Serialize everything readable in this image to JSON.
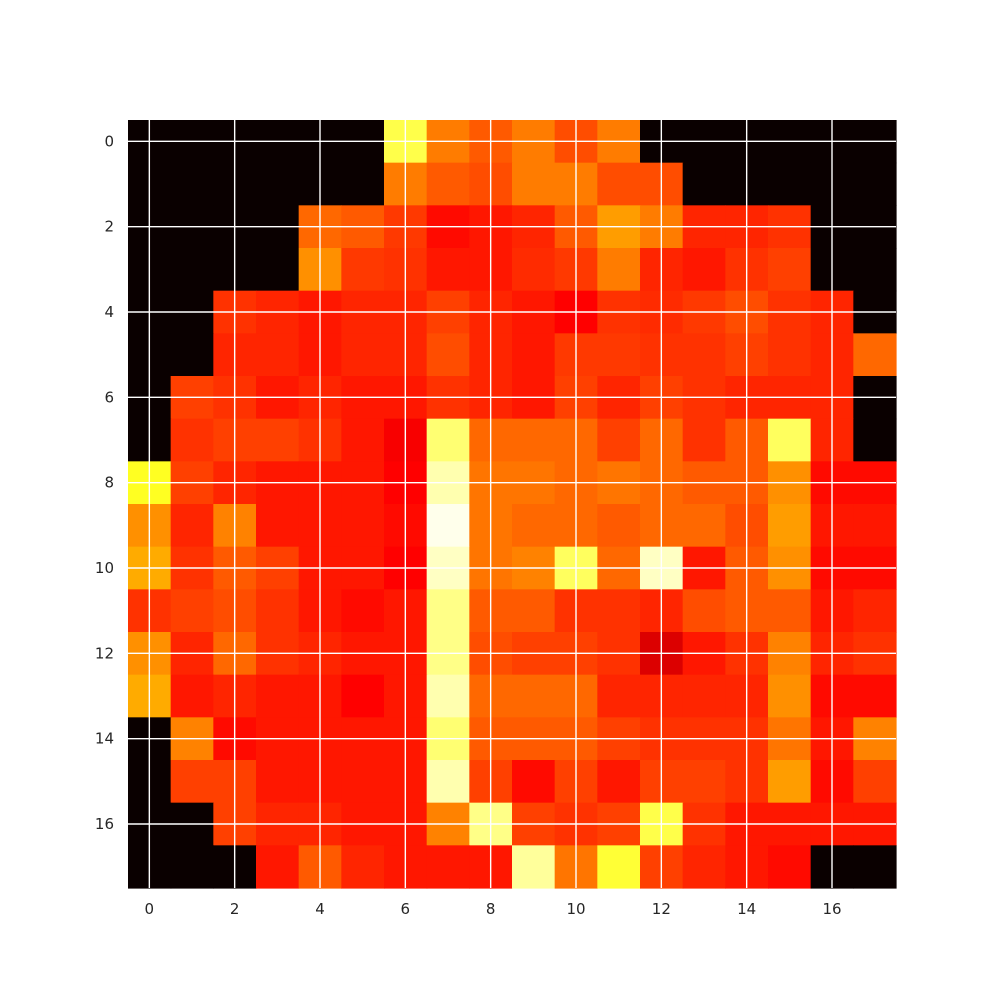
{
  "chart_data": {
    "type": "heatmap",
    "title": "",
    "xlabel": "",
    "ylabel": "",
    "colormap": "hot",
    "grid": true,
    "grid_color": "#ffffff",
    "background_color": "#0a0000",
    "x_ticks": [
      "0",
      "2",
      "4",
      "6",
      "8",
      "10",
      "12",
      "14",
      "16"
    ],
    "y_ticks": [
      "0",
      "2",
      "4",
      "6",
      "8",
      "10",
      "12",
      "14",
      "16"
    ],
    "x_tick_values": [
      0,
      2,
      4,
      6,
      8,
      10,
      12,
      14,
      16
    ],
    "y_tick_values": [
      0,
      2,
      4,
      6,
      8,
      10,
      12,
      14,
      16
    ],
    "xlim": [
      -0.5,
      17.5
    ],
    "ylim": [
      17.5,
      -0.5
    ],
    "value_range": [
      0,
      1
    ],
    "values": [
      [
        0.0,
        0.0,
        0.0,
        0.0,
        0.0,
        0.0,
        0.82,
        0.55,
        0.5,
        0.55,
        0.48,
        0.55,
        0.0,
        0.0,
        0.0,
        0.0,
        0.0,
        0.0
      ],
      [
        0.0,
        0.0,
        0.0,
        0.0,
        0.0,
        0.0,
        0.55,
        0.5,
        0.48,
        0.55,
        0.55,
        0.48,
        0.48,
        0.0,
        0.0,
        0.0,
        0.0,
        0.0
      ],
      [
        0.0,
        0.0,
        0.0,
        0.0,
        0.52,
        0.5,
        0.45,
        0.38,
        0.4,
        0.42,
        0.5,
        0.6,
        0.55,
        0.42,
        0.42,
        0.44,
        0.0,
        0.0
      ],
      [
        0.0,
        0.0,
        0.0,
        0.0,
        0.58,
        0.45,
        0.44,
        0.4,
        0.4,
        0.43,
        0.45,
        0.55,
        0.42,
        0.4,
        0.44,
        0.46,
        0.0,
        0.0
      ],
      [
        0.0,
        0.0,
        0.44,
        0.42,
        0.4,
        0.42,
        0.42,
        0.46,
        0.42,
        0.4,
        0.36,
        0.44,
        0.43,
        0.45,
        0.48,
        0.44,
        0.42,
        0.0
      ],
      [
        0.0,
        0.0,
        0.42,
        0.42,
        0.4,
        0.42,
        0.42,
        0.48,
        0.42,
        0.4,
        0.45,
        0.45,
        0.44,
        0.44,
        0.46,
        0.44,
        0.42,
        0.52
      ],
      [
        0.0,
        0.46,
        0.44,
        0.4,
        0.42,
        0.4,
        0.4,
        0.44,
        0.42,
        0.4,
        0.46,
        0.42,
        0.46,
        0.44,
        0.42,
        0.42,
        0.42,
        0.0
      ],
      [
        0.0,
        0.44,
        0.46,
        0.46,
        0.44,
        0.4,
        0.34,
        0.86,
        0.52,
        0.52,
        0.52,
        0.46,
        0.52,
        0.44,
        0.5,
        0.84,
        0.42,
        0.0
      ],
      [
        0.78,
        0.46,
        0.42,
        0.4,
        0.4,
        0.4,
        0.36,
        0.92,
        0.54,
        0.54,
        0.52,
        0.54,
        0.52,
        0.5,
        0.5,
        0.58,
        0.38,
        0.38
      ],
      [
        0.58,
        0.42,
        0.56,
        0.4,
        0.4,
        0.4,
        0.38,
        0.98,
        0.54,
        0.52,
        0.52,
        0.5,
        0.52,
        0.52,
        0.48,
        0.6,
        0.4,
        0.4
      ],
      [
        0.62,
        0.44,
        0.5,
        0.46,
        0.4,
        0.4,
        0.36,
        0.94,
        0.54,
        0.56,
        0.84,
        0.52,
        0.94,
        0.4,
        0.5,
        0.58,
        0.38,
        0.38
      ],
      [
        0.44,
        0.46,
        0.48,
        0.44,
        0.4,
        0.38,
        0.4,
        0.88,
        0.5,
        0.5,
        0.44,
        0.44,
        0.42,
        0.48,
        0.5,
        0.5,
        0.4,
        0.42
      ],
      [
        0.58,
        0.42,
        0.52,
        0.44,
        0.42,
        0.4,
        0.4,
        0.88,
        0.48,
        0.46,
        0.46,
        0.44,
        0.3,
        0.4,
        0.44,
        0.56,
        0.42,
        0.44
      ],
      [
        0.62,
        0.4,
        0.42,
        0.4,
        0.4,
        0.36,
        0.4,
        0.92,
        0.52,
        0.52,
        0.52,
        0.42,
        0.42,
        0.42,
        0.42,
        0.58,
        0.38,
        0.38
      ],
      [
        0.0,
        0.56,
        0.38,
        0.4,
        0.4,
        0.4,
        0.4,
        0.86,
        0.5,
        0.5,
        0.5,
        0.46,
        0.44,
        0.44,
        0.44,
        0.54,
        0.4,
        0.56
      ],
      [
        0.0,
        0.46,
        0.46,
        0.4,
        0.4,
        0.4,
        0.4,
        0.92,
        0.46,
        0.38,
        0.46,
        0.4,
        0.46,
        0.46,
        0.44,
        0.6,
        0.38,
        0.46
      ],
      [
        0.0,
        0.0,
        0.46,
        0.42,
        0.42,
        0.4,
        0.4,
        0.56,
        0.88,
        0.46,
        0.44,
        0.46,
        0.82,
        0.44,
        0.4,
        0.4,
        0.4,
        0.4
      ],
      [
        0.0,
        0.0,
        0.0,
        0.4,
        0.5,
        0.42,
        0.4,
        0.4,
        0.4,
        0.9,
        0.54,
        0.8,
        0.46,
        0.42,
        0.4,
        0.38,
        0.0,
        0.0
      ]
    ]
  }
}
